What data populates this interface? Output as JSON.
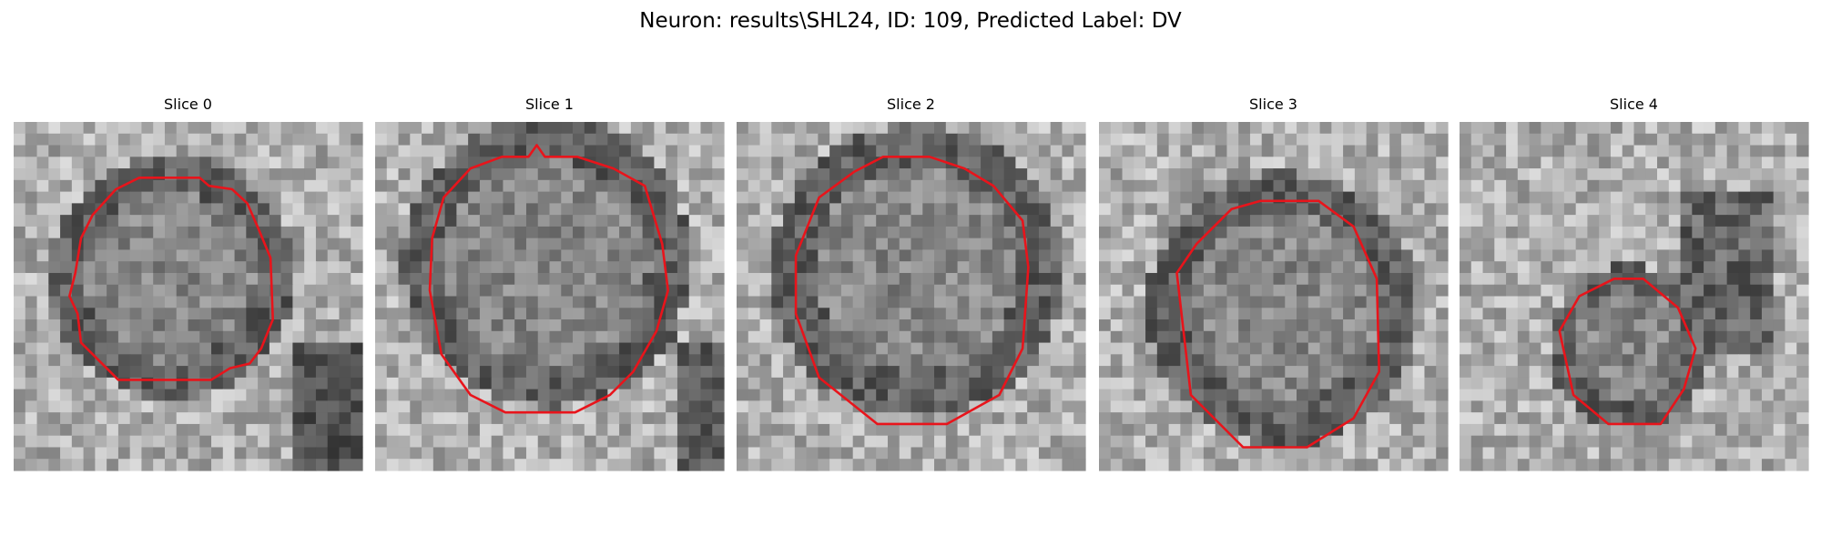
{
  "title": "Neuron: results\\SHL24, ID: 109, Predicted Label: DV",
  "panels": [
    {
      "title": "Slice 0"
    },
    {
      "title": "Slice 1"
    },
    {
      "title": "Slice 2"
    },
    {
      "title": "Slice 3"
    },
    {
      "title": "Slice 4"
    }
  ]
}
